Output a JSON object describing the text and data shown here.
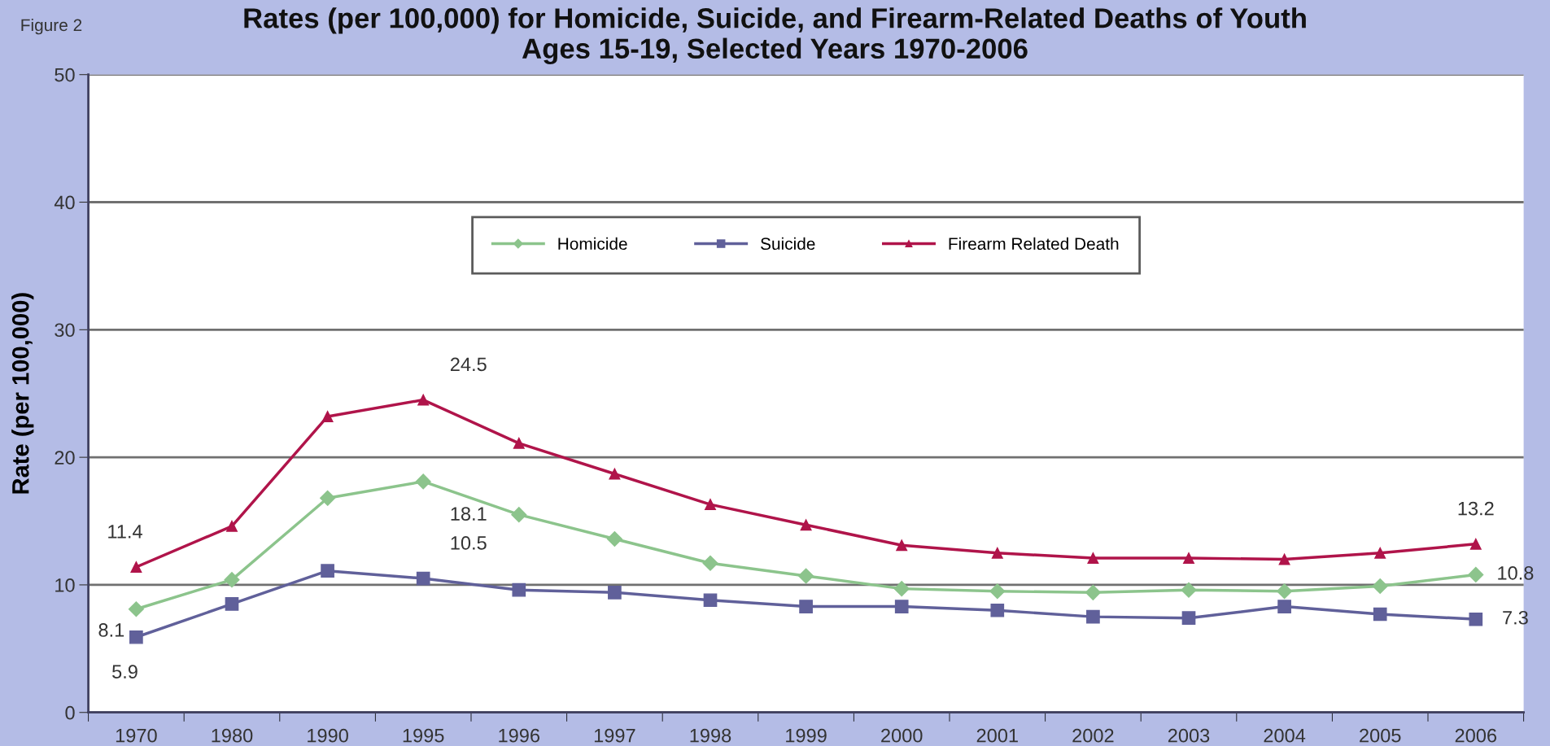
{
  "chart_data": {
    "type": "line",
    "title": "Rates (per 100,000) for Homicide, Suicide, and Firearm-Related Deaths of Youth\nAges 15-19, Selected Years 1970-2006",
    "ylabel": "Rate (per 100,000)",
    "annotations": [
      "Figure 2"
    ],
    "categories": [
      "1970",
      "1980",
      "1990",
      "1995",
      "1996",
      "1997",
      "1998",
      "1999",
      "2000",
      "2001",
      "2002",
      "2003",
      "2004",
      "2005",
      "2006"
    ],
    "series": [
      {
        "name": "Homicide",
        "color": "#8cc48c",
        "marker": "diamond",
        "values": [
          8.1,
          10.4,
          16.8,
          18.1,
          15.5,
          13.6,
          11.7,
          10.7,
          9.7,
          9.5,
          9.4,
          9.6,
          9.5,
          9.9,
          10.8
        ],
        "value_labels": [
          "8.1",
          null,
          null,
          "18.1",
          null,
          null,
          null,
          null,
          null,
          null,
          null,
          null,
          null,
          null,
          "10.8"
        ]
      },
      {
        "name": "Suicide",
        "color": "#60609a",
        "marker": "square",
        "values": [
          5.9,
          8.5,
          11.1,
          10.5,
          9.6,
          9.4,
          8.8,
          8.3,
          8.3,
          8.0,
          7.5,
          7.4,
          8.3,
          7.7,
          7.3
        ],
        "value_labels": [
          "5.9",
          null,
          null,
          "10.5",
          null,
          null,
          null,
          null,
          null,
          null,
          null,
          null,
          null,
          null,
          "7.3"
        ]
      },
      {
        "name": "Firearm Related Death",
        "color": "#b0144a",
        "marker": "triangle",
        "values": [
          11.4,
          14.6,
          23.2,
          24.5,
          21.1,
          18.7,
          16.3,
          14.7,
          13.1,
          12.5,
          12.1,
          12.1,
          12.0,
          12.5,
          13.2
        ],
        "value_labels": [
          "11.4",
          null,
          null,
          "24.5",
          null,
          null,
          null,
          null,
          null,
          null,
          null,
          null,
          null,
          null,
          "13.2"
        ]
      }
    ],
    "ylim": [
      0,
      50
    ],
    "yticks": [
      0,
      10,
      20,
      30,
      40,
      50
    ],
    "grid": "y",
    "legend": "top"
  }
}
